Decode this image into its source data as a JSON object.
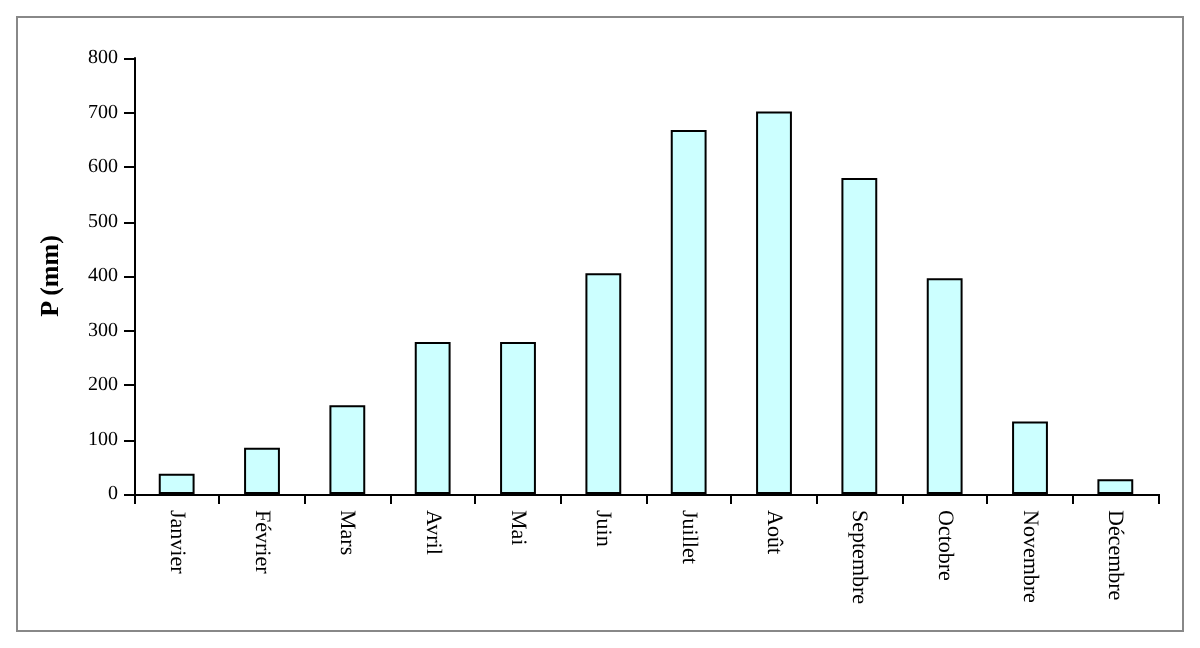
{
  "chart_data": {
    "type": "bar",
    "ylabel": "P (mm)",
    "categories": [
      "Janvier",
      "Février",
      "Mars",
      "Avril",
      "Mai",
      "Juin",
      "Juillet",
      "Août",
      "Septembre",
      "Octobre",
      "Novembre",
      "Décembre"
    ],
    "values": [
      37,
      85,
      163,
      279,
      279,
      405,
      668,
      702,
      580,
      396,
      133,
      27
    ],
    "color": "#ccffff",
    "ylim": [
      0,
      800
    ],
    "yticks": [
      0,
      100,
      200,
      300,
      400,
      500,
      600,
      700,
      800
    ],
    "grid": false
  }
}
